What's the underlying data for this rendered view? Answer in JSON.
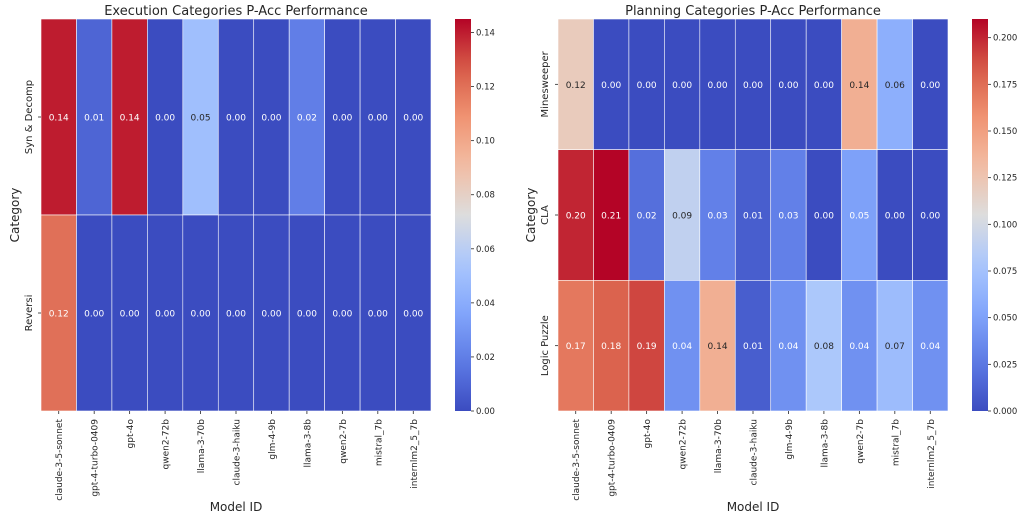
{
  "chart_data": [
    {
      "type": "heatmap",
      "title": "Execution Categories P-Acc Performance",
      "xlabel": "Model ID",
      "ylabel": "Category",
      "x": [
        "claude-3-5-sonnet",
        "gpt-4-turbo-0409",
        "gpt-4o",
        "qwen2-72b",
        "llama-3-70b",
        "claude-3-haiku",
        "glm-4-9b",
        "llama-3-8b",
        "qwen2-7b",
        "mistral_7b",
        "internlm2_5_7b"
      ],
      "y": [
        "Syn & Decomp",
        "Reversi"
      ],
      "values": [
        [
          0.14,
          0.01,
          0.14,
          0.0,
          0.05,
          0.0,
          0.0,
          0.02,
          0.0,
          0.0,
          0.0
        ],
        [
          0.12,
          0.0,
          0.0,
          0.0,
          0.0,
          0.0,
          0.0,
          0.0,
          0.0,
          0.0,
          0.0
        ]
      ],
      "labels": [
        [
          "0.14",
          "0.01",
          "0.14",
          "0.00",
          "0.05",
          "0.00",
          "0.00",
          "0.02",
          "0.00",
          "0.00",
          "0.00"
        ],
        [
          "0.12",
          "0.00",
          "0.00",
          "0.00",
          "0.00",
          "0.00",
          "0.00",
          "0.00",
          "0.00",
          "0.00",
          "0.00"
        ]
      ],
      "vmin": 0,
      "vmax": 0.145,
      "colorbar_ticks": [
        "0.00",
        "0.02",
        "0.04",
        "0.06",
        "0.08",
        "0.10",
        "0.12",
        "0.14"
      ],
      "colormap": "coolwarm"
    },
    {
      "type": "heatmap",
      "title": "Planning Categories P-Acc Performance",
      "xlabel": "Model ID",
      "ylabel": "Category",
      "x": [
        "claude-3-5-sonnet",
        "gpt-4-turbo-0409",
        "gpt-4o",
        "qwen2-72b",
        "llama-3-70b",
        "claude-3-haiku",
        "glm-4-9b",
        "llama-3-8b",
        "qwen2-7b",
        "mistral_7b",
        "internlm2_5_7b"
      ],
      "y": [
        "Minesweeper",
        "CLA",
        "Logic Puzzle"
      ],
      "values": [
        [
          0.12,
          0.0,
          0.0,
          0.0,
          0.0,
          0.0,
          0.0,
          0.0,
          0.14,
          0.06,
          0.0
        ],
        [
          0.2,
          0.21,
          0.02,
          0.09,
          0.03,
          0.01,
          0.03,
          0.0,
          0.05,
          0.0,
          0.0
        ],
        [
          0.17,
          0.18,
          0.19,
          0.04,
          0.14,
          0.01,
          0.04,
          0.08,
          0.04,
          0.07,
          0.04
        ]
      ],
      "labels": [
        [
          "0.12",
          "0.00",
          "0.00",
          "0.00",
          "0.00",
          "0.00",
          "0.00",
          "0.00",
          "0.14",
          "0.06",
          "0.00"
        ],
        [
          "0.20",
          "0.21",
          "0.02",
          "0.09",
          "0.03",
          "0.01",
          "0.03",
          "0.00",
          "0.05",
          "0.00",
          "0.00"
        ],
        [
          "0.17",
          "0.18",
          "0.19",
          "0.04",
          "0.14",
          "0.01",
          "0.04",
          "0.08",
          "0.04",
          "0.07",
          "0.04"
        ]
      ],
      "vmin": 0,
      "vmax": 0.21,
      "colorbar_ticks": [
        "0.000",
        "0.025",
        "0.050",
        "0.075",
        "0.100",
        "0.125",
        "0.150",
        "0.175",
        "0.200"
      ],
      "colormap": "coolwarm"
    }
  ]
}
